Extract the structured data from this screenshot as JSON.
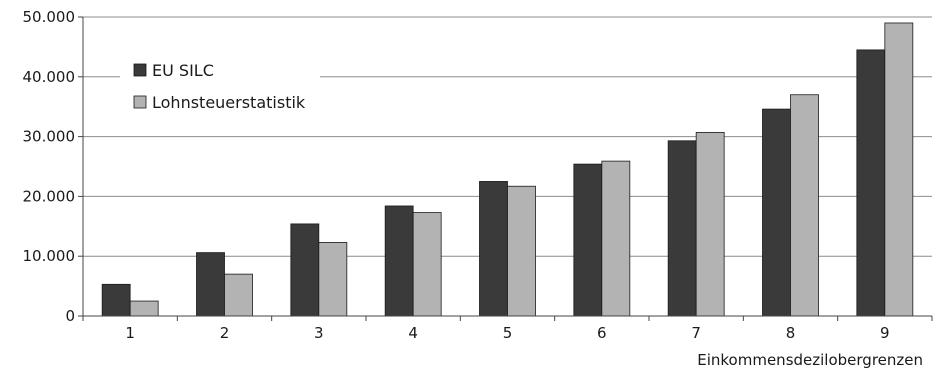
{
  "chart_data": {
    "type": "bar",
    "title": "",
    "xlabel": "Einkommensdezilobergrenzen",
    "ylabel": "",
    "categories": [
      "1",
      "2",
      "3",
      "4",
      "5",
      "6",
      "7",
      "8",
      "9"
    ],
    "series": [
      {
        "name": "EU SILC",
        "color": "#3a3a3a",
        "values": [
          5300,
          10600,
          15400,
          18400,
          22500,
          25400,
          29300,
          34600,
          44500
        ]
      },
      {
        "name": "Lohnsteuerstatistik",
        "color": "#b3b3b3",
        "values": [
          2500,
          7000,
          12300,
          17300,
          21700,
          25900,
          30700,
          37000,
          49000
        ]
      }
    ],
    "ylim": [
      0,
      50000
    ],
    "yticks": [
      0,
      10000,
      20000,
      30000,
      40000,
      50000
    ],
    "ytick_labels": [
      "0",
      "10.000",
      "20.000",
      "30.000",
      "40.000",
      "50.000"
    ],
    "grid": "horizontal",
    "legend_position": "top-left"
  }
}
